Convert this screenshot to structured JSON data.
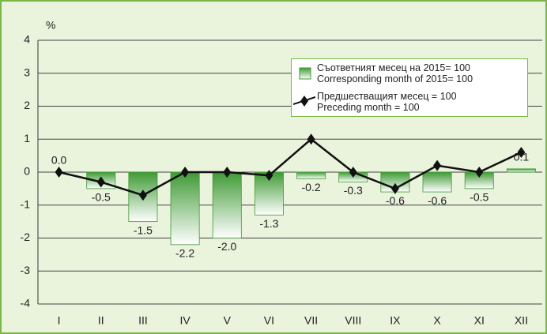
{
  "chart_data": {
    "type": "bar",
    "y_label": "%",
    "categories": [
      "I",
      "II",
      "III",
      "IV",
      "V",
      "VI",
      "VII",
      "VIII",
      "IX",
      "X",
      "XI",
      "XII"
    ],
    "series": [
      {
        "name": "Съответният месец на 2015= 100\nCorresponding month of 2015= 100",
        "type": "bar",
        "color": "#3f9a35",
        "values": [
          0.0,
          -0.5,
          -1.5,
          -2.2,
          -2.0,
          -1.3,
          -0.2,
          -0.3,
          -0.6,
          -0.6,
          -0.5,
          0.1
        ],
        "value_labels": [
          "0.0",
          "-0.5",
          "-1.5",
          "-2.2",
          "-2.0",
          "-1.3",
          "-0.2",
          "-0.3",
          "-0.6",
          "-0.6",
          "-0.5",
          "0.1"
        ]
      },
      {
        "name": "Предшестващият месец = 100\nPreceding month = 100",
        "type": "line",
        "color": "#111111",
        "values": [
          0.0,
          -0.3,
          -0.7,
          0.0,
          0.0,
          -0.1,
          1.0,
          0.0,
          -0.5,
          0.2,
          0.0,
          0.6
        ]
      }
    ],
    "ylim": [
      -4,
      4
    ],
    "yticks": [
      4,
      3,
      2,
      1,
      0,
      -1,
      -2,
      -3,
      -4
    ],
    "grid": true
  }
}
